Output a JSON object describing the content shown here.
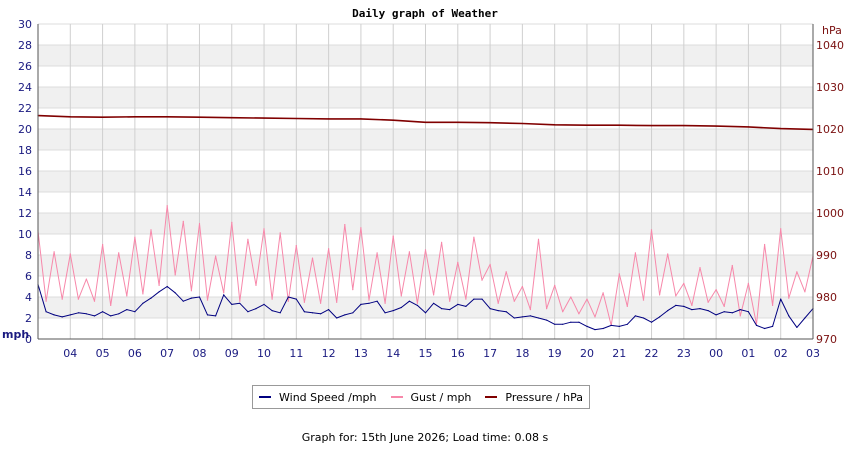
{
  "chart_data": {
    "type": "line",
    "title": "Daily graph of Weather",
    "x_ticks": [
      "04",
      "05",
      "06",
      "07",
      "08",
      "09",
      "10",
      "11",
      "12",
      "13",
      "14",
      "15",
      "16",
      "17",
      "18",
      "19",
      "20",
      "21",
      "22",
      "23",
      "00",
      "01",
      "02",
      "03"
    ],
    "y_left": {
      "unit": "mph",
      "range": [
        0,
        30
      ],
      "ticks": [
        0,
        2,
        4,
        6,
        8,
        10,
        12,
        14,
        16,
        18,
        20,
        22,
        24,
        26,
        28,
        30
      ]
    },
    "y_right": {
      "unit": "hPa",
      "range": [
        970,
        1045
      ],
      "ticks": [
        970,
        980,
        990,
        1000,
        1010,
        1020,
        1030,
        1040
      ]
    },
    "x_range": [
      3.0,
      27.0
    ],
    "grid": true,
    "legend_position": "bottom",
    "series": [
      {
        "name": "Wind Speed /mph",
        "axis": "left",
        "color": "#000080",
        "x": [
          3.0,
          3.25,
          3.5,
          3.75,
          4.0,
          4.25,
          4.5,
          4.75,
          5.0,
          5.25,
          5.5,
          5.75,
          6.0,
          6.25,
          6.5,
          6.75,
          7.0,
          7.25,
          7.5,
          7.75,
          8.0,
          8.25,
          8.5,
          8.75,
          9.0,
          9.25,
          9.5,
          9.75,
          10.0,
          10.25,
          10.5,
          10.75,
          11.0,
          11.25,
          11.5,
          11.75,
          12.0,
          12.25,
          12.5,
          12.75,
          13.0,
          13.25,
          13.5,
          13.75,
          14.0,
          14.25,
          14.5,
          14.75,
          15.0,
          15.25,
          15.5,
          15.75,
          16.0,
          16.25,
          16.5,
          16.75,
          17.0,
          17.25,
          17.5,
          17.75,
          18.0,
          18.25,
          18.5,
          18.75,
          19.0,
          19.25,
          19.5,
          19.75,
          20.0,
          20.25,
          20.5,
          20.75,
          21.0,
          21.25,
          21.5,
          21.75,
          22.0,
          22.25,
          22.5,
          22.75,
          23.0,
          23.25,
          23.5,
          23.75,
          24.0,
          24.25,
          24.5,
          24.75,
          25.0,
          25.25,
          25.5,
          25.75,
          26.0,
          26.25,
          26.5,
          26.75,
          27.0
        ],
        "values": [
          5.2,
          2.6,
          2.3,
          2.1,
          2.3,
          2.5,
          2.4,
          2.2,
          2.6,
          2.2,
          2.4,
          2.8,
          2.6,
          3.4,
          3.9,
          4.5,
          5.0,
          4.4,
          3.6,
          3.9,
          4.0,
          2.3,
          2.2,
          4.2,
          3.3,
          3.4,
          2.6,
          2.9,
          3.3,
          2.7,
          2.5,
          4.0,
          3.8,
          2.6,
          2.5,
          2.4,
          2.8,
          2.0,
          2.3,
          2.5,
          3.3,
          3.4,
          3.6,
          2.5,
          2.7,
          3.0,
          3.6,
          3.2,
          2.5,
          3.4,
          2.9,
          2.8,
          3.3,
          3.1,
          3.8,
          3.8,
          2.9,
          2.7,
          2.6,
          2.0,
          2.1,
          2.2,
          2.0,
          1.8,
          1.4,
          1.4,
          1.6,
          1.6,
          1.2,
          0.9,
          1.0,
          1.3,
          1.2,
          1.4,
          2.2,
          2.0,
          1.6,
          2.1,
          2.7,
          3.2,
          3.1,
          2.8,
          2.9,
          2.7,
          2.3,
          2.6,
          2.5,
          2.8,
          2.6,
          1.3,
          1.0,
          1.2,
          3.8,
          2.2,
          1.1,
          2.0,
          2.9
        ]
      },
      {
        "name": "Gust / mph",
        "axis": "left",
        "color": "#f788aa",
        "x": [
          3.0,
          3.25,
          3.5,
          3.75,
          4.0,
          4.25,
          4.5,
          4.75,
          5.0,
          5.25,
          5.5,
          5.75,
          6.0,
          6.25,
          6.5,
          6.75,
          7.0,
          7.25,
          7.5,
          7.75,
          8.0,
          8.25,
          8.5,
          8.75,
          9.0,
          9.25,
          9.5,
          9.75,
          10.0,
          10.25,
          10.5,
          10.75,
          11.0,
          11.25,
          11.5,
          11.75,
          12.0,
          12.25,
          12.5,
          12.75,
          13.0,
          13.25,
          13.5,
          13.75,
          14.0,
          14.25,
          14.5,
          14.75,
          15.0,
          15.25,
          15.5,
          15.75,
          16.0,
          16.25,
          16.5,
          16.75,
          17.0,
          17.25,
          17.5,
          17.75,
          18.0,
          18.25,
          18.5,
          18.75,
          19.0,
          19.25,
          19.5,
          19.75,
          20.0,
          20.25,
          20.5,
          20.75,
          21.0,
          21.25,
          21.5,
          21.75,
          22.0,
          22.25,
          22.5,
          22.75,
          23.0,
          23.25,
          23.5,
          23.75,
          24.0,
          24.25,
          24.5,
          24.75,
          25.0,
          25.25,
          25.5,
          25.75,
          26.0,
          26.25,
          26.5,
          26.75,
          27.0
        ],
        "values": [
          10.3,
          3.6,
          8.3,
          3.8,
          8.1,
          3.8,
          5.7,
          3.6,
          9.0,
          3.2,
          8.2,
          4.1,
          9.7,
          4.3,
          10.4,
          5.1,
          12.7,
          6.1,
          11.2,
          4.6,
          11.0,
          3.7,
          7.9,
          4.4,
          11.1,
          3.6,
          9.5,
          5.1,
          10.5,
          3.8,
          10.1,
          3.6,
          8.9,
          3.5,
          7.7,
          3.4,
          8.6,
          3.5,
          10.9,
          4.7,
          10.6,
          3.7,
          8.2,
          3.4,
          9.8,
          4.1,
          8.3,
          3.4,
          8.5,
          4.2,
          9.2,
          3.6,
          7.3,
          3.8,
          9.7,
          5.6,
          7.1,
          3.4,
          6.4,
          3.6,
          5.0,
          2.8,
          9.5,
          2.9,
          5.1,
          2.6,
          4.0,
          2.4,
          3.8,
          2.1,
          4.4,
          1.3,
          6.2,
          3.1,
          8.2,
          3.7,
          10.4,
          4.2,
          8.1,
          4.1,
          5.3,
          3.2,
          6.8,
          3.5,
          4.7,
          3.1,
          7.0,
          2.2,
          5.3,
          1.4,
          9.0,
          3.2,
          10.5,
          3.9,
          6.4,
          4.5,
          7.9
        ]
      },
      {
        "name": "Pressure / hPa",
        "axis": "right",
        "color": "#800000",
        "x": [
          3.0,
          4.0,
          5.0,
          6.0,
          7.0,
          8.0,
          9.0,
          10.0,
          11.0,
          12.0,
          13.0,
          14.0,
          15.0,
          16.0,
          17.0,
          18.0,
          19.0,
          20.0,
          21.0,
          22.0,
          23.0,
          24.0,
          25.0,
          26.0,
          27.0
        ],
        "values": [
          1023.2,
          1022.9,
          1022.8,
          1022.9,
          1022.9,
          1022.8,
          1022.7,
          1022.6,
          1022.5,
          1022.4,
          1022.4,
          1022.1,
          1021.6,
          1021.6,
          1021.5,
          1021.3,
          1021.0,
          1020.9,
          1020.9,
          1020.8,
          1020.8,
          1020.7,
          1020.5,
          1020.1,
          1019.9
        ]
      }
    ]
  },
  "footer_text": "Graph for: 15th June 2026; Load time: 0.08 s"
}
